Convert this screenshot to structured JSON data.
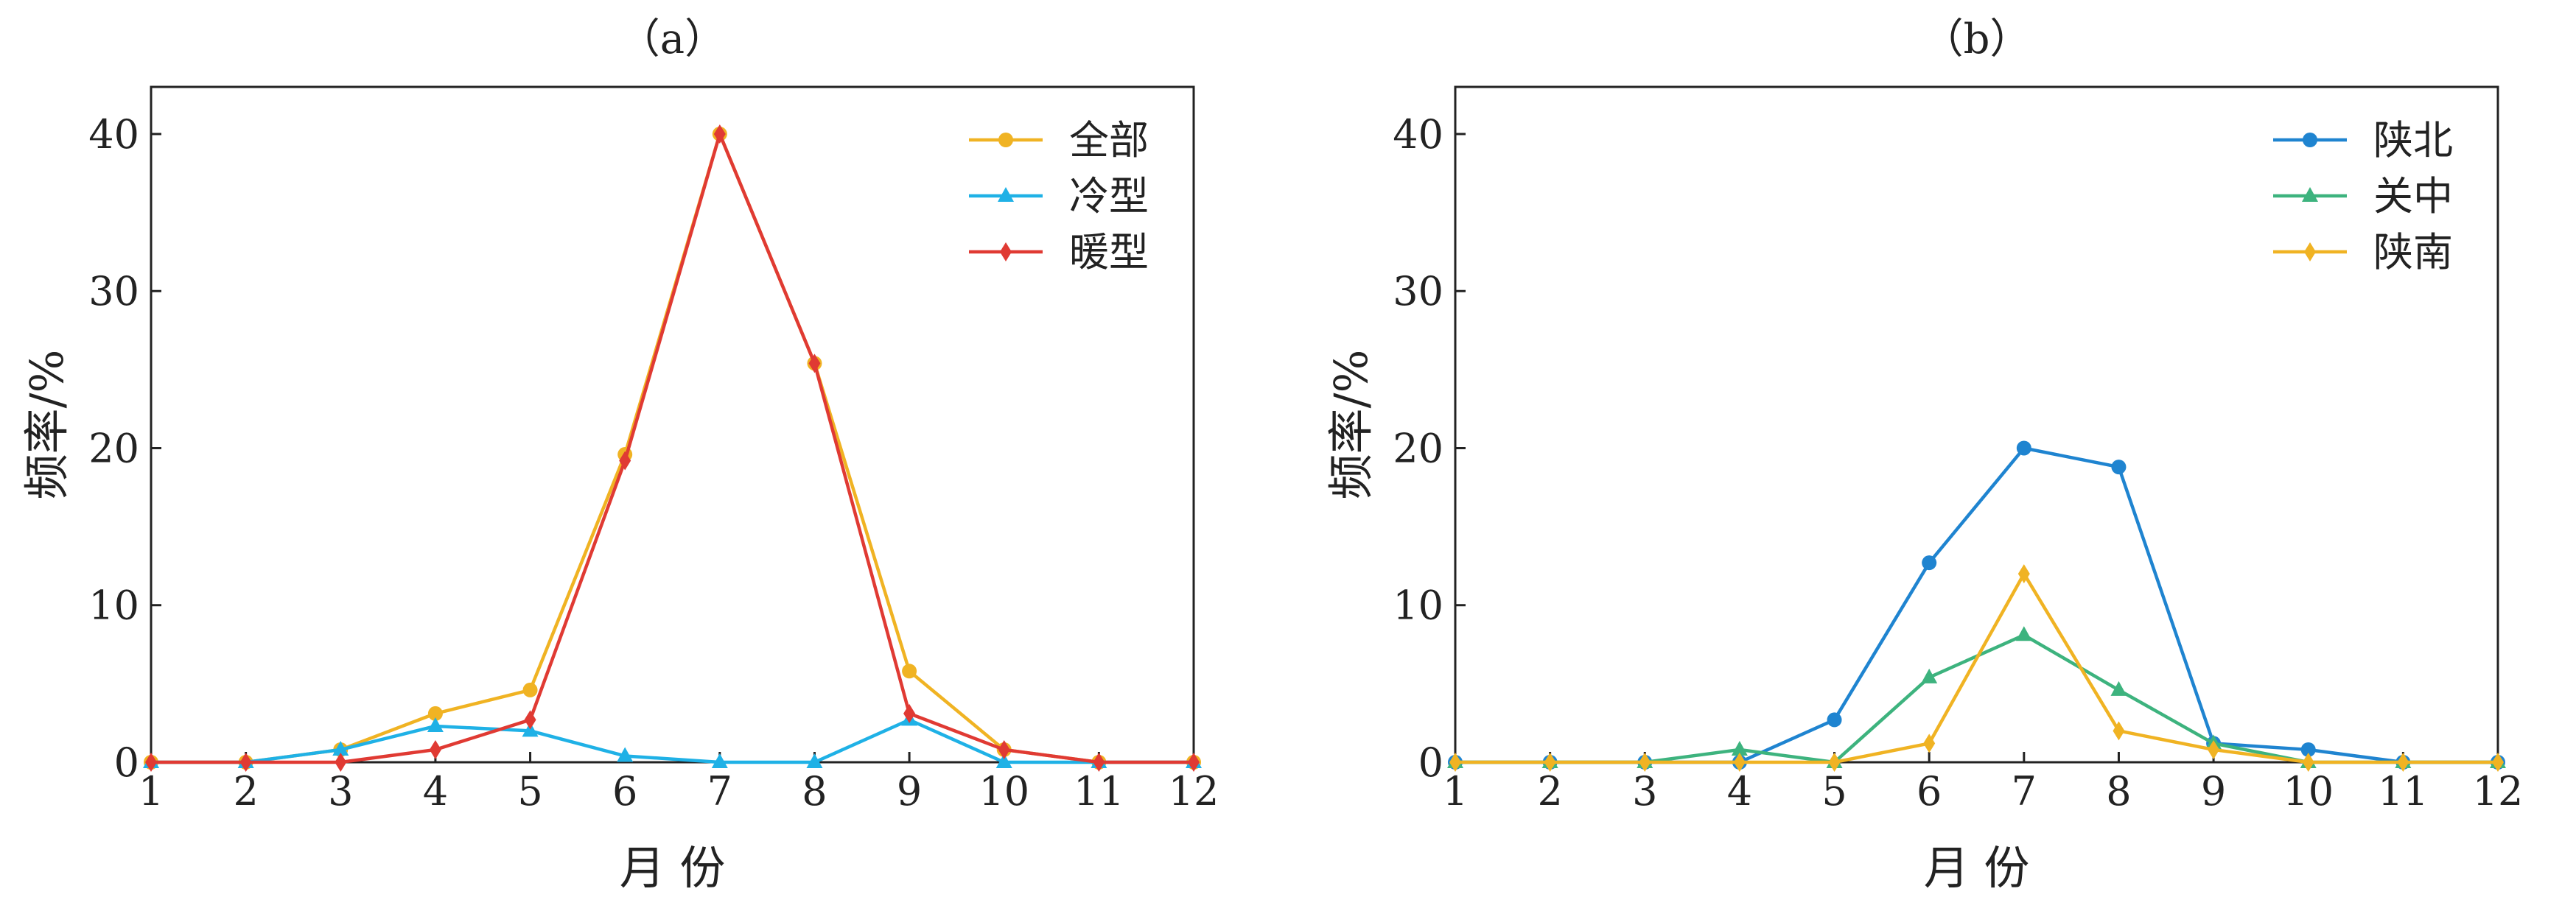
{
  "chart_data": [
    {
      "type": "line",
      "title": "（a）",
      "xlabel": "月  份",
      "ylabel": "频率/%",
      "xlim": [
        1,
        12
      ],
      "ylim": [
        0,
        43
      ],
      "xticks": [
        "1",
        "2",
        "3",
        "4",
        "5",
        "6",
        "7",
        "8",
        "9",
        "10",
        "11",
        "12"
      ],
      "yticks": [
        "0",
        "10",
        "20",
        "30",
        "40"
      ],
      "grid": false,
      "legend": "top-right",
      "x": [
        1,
        2,
        3,
        4,
        5,
        6,
        7,
        8,
        9,
        10,
        11,
        12
      ],
      "series": [
        {
          "name": "全部",
          "color": "#F0B323",
          "marker": "circle",
          "values": [
            0,
            0,
            0.8,
            3.1,
            4.6,
            19.6,
            40,
            25.4,
            5.8,
            0.8,
            0,
            0
          ]
        },
        {
          "name": "冷型",
          "color": "#1FB1E6",
          "marker": "triangle",
          "values": [
            0,
            0,
            0.8,
            2.3,
            2.0,
            0.4,
            0,
            0,
            2.7,
            0,
            0,
            0
          ]
        },
        {
          "name": "暖型",
          "color": "#E03A33",
          "marker": "diamond",
          "values": [
            0,
            0,
            0,
            0.8,
            2.7,
            19.2,
            40,
            25.4,
            3.1,
            0.8,
            0,
            0
          ]
        }
      ]
    },
    {
      "type": "line",
      "title": "（b）",
      "xlabel": "月  份",
      "ylabel": "频率/%",
      "xlim": [
        1,
        12
      ],
      "ylim": [
        0,
        43
      ],
      "xticks": [
        "1",
        "2",
        "3",
        "4",
        "5",
        "6",
        "7",
        "8",
        "9",
        "10",
        "11",
        "12"
      ],
      "yticks": [
        "0",
        "10",
        "20",
        "30",
        "40"
      ],
      "grid": false,
      "legend": "top-right",
      "x": [
        1,
        2,
        3,
        4,
        5,
        6,
        7,
        8,
        9,
        10,
        11,
        12
      ],
      "series": [
        {
          "name": "陕北",
          "color": "#1F84D0",
          "marker": "circle",
          "values": [
            0,
            0,
            0,
            0,
            2.7,
            12.7,
            20.0,
            18.8,
            1.2,
            0.8,
            0,
            0
          ]
        },
        {
          "name": "关中",
          "color": "#3DB37E",
          "marker": "triangle",
          "values": [
            0,
            0,
            0,
            0.8,
            0,
            5.4,
            8.1,
            4.6,
            1.2,
            0,
            0,
            0
          ]
        },
        {
          "name": "陕南",
          "color": "#F0B323",
          "marker": "diamond",
          "values": [
            0,
            0,
            0,
            0,
            0,
            1.2,
            12.0,
            2.0,
            0.8,
            0,
            0,
            0
          ]
        }
      ]
    }
  ]
}
